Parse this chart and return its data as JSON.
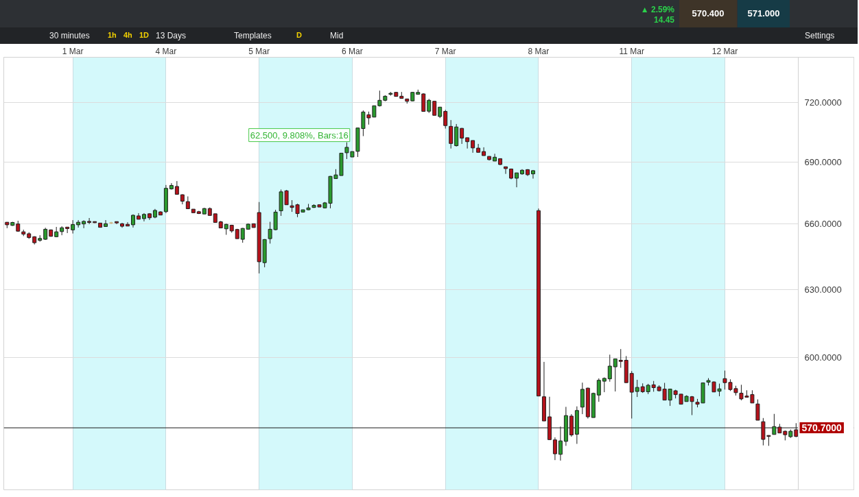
{
  "chart_data": {
    "type": "candlestick",
    "categories": [
      null,
      null,
      null,
      null,
      null,
      null,
      null,
      null,
      null,
      null,
      null,
      null,
      "1 Mar",
      null,
      null,
      null,
      null,
      null,
      null,
      null,
      null,
      null,
      null,
      null,
      null,
      null,
      null,
      null,
      null,
      "4 Mar",
      null,
      null,
      null,
      null,
      null,
      null,
      null,
      null,
      null,
      null,
      null,
      null,
      null,
      null,
      null,
      null,
      "5 Mar",
      null,
      null,
      null,
      null,
      null,
      null,
      null,
      null,
      null,
      null,
      null,
      null,
      null,
      null,
      null,
      null,
      "6 Mar",
      null,
      null,
      null,
      null,
      null,
      null,
      null,
      null,
      null,
      null,
      null,
      null,
      null,
      null,
      null,
      null,
      "7 Mar",
      null,
      null,
      null,
      null,
      null,
      null,
      null,
      null,
      null,
      null,
      null,
      null,
      null,
      null,
      null,
      null,
      "8 Mar",
      null,
      null,
      null,
      null,
      null,
      null,
      null,
      null,
      null,
      null,
      null,
      null,
      null,
      null,
      null,
      null,
      "11 Mar",
      null,
      null,
      null,
      null,
      null,
      null,
      null,
      null,
      null,
      null,
      null,
      null,
      null,
      null,
      null,
      null,
      "12 Mar",
      null,
      null,
      null,
      null,
      null,
      null,
      null,
      null,
      null,
      null,
      null,
      null,
      null
    ],
    "ohlc": [
      [
        660.9,
        660.9,
        658.1,
        659.7
      ],
      [
        659.4,
        661.1,
        659.2,
        660.8
      ],
      [
        660.1,
        661.6,
        656.4,
        656.7
      ],
      [
        656.4,
        657.4,
        654.4,
        655.3
      ],
      [
        655.5,
        656.2,
        653.1,
        653.7
      ],
      [
        654.1,
        654.3,
        650.5,
        651.3
      ],
      [
        652.4,
        654.8,
        651.8,
        653.3
      ],
      [
        652.9,
        658.3,
        652.6,
        657.6
      ],
      [
        657.3,
        657.5,
        654.1,
        654.3
      ],
      [
        654.1,
        658.7,
        653.9,
        656.4
      ],
      [
        656.5,
        659.0,
        654.8,
        658.3
      ],
      [
        658.6,
        658.6,
        655.8,
        657.9
      ],
      [
        657.3,
        661.9,
        655.6,
        659.8
      ],
      [
        659.7,
        661.9,
        658.4,
        660.9
      ],
      [
        660.1,
        661.8,
        658.1,
        661.3
      ],
      [
        661.3,
        662.9,
        660.0,
        660.8
      ],
      [
        661.2,
        661.3,
        660.5,
        660.7
      ],
      [
        660.5,
        660.6,
        658.4,
        658.5
      ],
      [
        658.9,
        661.9,
        658.7,
        660.2
      ],
      [
        660.6,
        661.1,
        660.0,
        660.6
      ],
      [
        661.2,
        661.2,
        660.0,
        660.6
      ],
      [
        660.2,
        660.6,
        658.3,
        659.0
      ],
      [
        659.9,
        660.9,
        659.1,
        659.1
      ],
      [
        659.7,
        664.6,
        658.4,
        664.2
      ],
      [
        663.9,
        665.2,
        662.3,
        662.3
      ],
      [
        662.6,
        665.2,
        661.3,
        664.6
      ],
      [
        664.9,
        665.2,
        662.0,
        663.0
      ],
      [
        663.3,
        667.2,
        662.8,
        666.5
      ],
      [
        665.8,
        666.1,
        664.3,
        664.3
      ],
      [
        665.9,
        678.7,
        665.2,
        677.1
      ],
      [
        676.8,
        679.6,
        676.5,
        678.5
      ],
      [
        678.0,
        680.6,
        674.2,
        674.2
      ],
      [
        674.0,
        674.2,
        669.4,
        670.9
      ],
      [
        670.7,
        673.2,
        667.3,
        667.3
      ],
      [
        667.1,
        667.1,
        665.4,
        665.4
      ],
      [
        665.9,
        666.3,
        664.8,
        665.0
      ],
      [
        664.8,
        667.7,
        664.8,
        667.4
      ],
      [
        667.4,
        667.9,
        664.1,
        664.1
      ],
      [
        664.9,
        664.9,
        660.8,
        660.8
      ],
      [
        661.1,
        661.5,
        658.2,
        658.2
      ],
      [
        657.8,
        660.2,
        655.0,
        659.9
      ],
      [
        659.5,
        659.7,
        656.0,
        656.8
      ],
      [
        657.5,
        657.8,
        653.2,
        653.2
      ],
      [
        652.9,
        658.2,
        651.3,
        658.0
      ],
      [
        657.6,
        660.3,
        657.6,
        660.0
      ],
      [
        660.2,
        660.3,
        658.4,
        658.4
      ],
      [
        665.5,
        670.5,
        637.2,
        642.5
      ],
      [
        642.1,
        653.0,
        640.0,
        652.8
      ],
      [
        653.2,
        661.1,
        650.9,
        657.6
      ],
      [
        657.4,
        666.8,
        657.1,
        665.7
      ],
      [
        666.3,
        676.5,
        663.9,
        675.4
      ],
      [
        675.9,
        676.3,
        669.2,
        669.2
      ],
      [
        668.7,
        671.4,
        665.8,
        667.9
      ],
      [
        669.2,
        669.7,
        663.3,
        665.0
      ],
      [
        665.7,
        666.8,
        665.7,
        666.8
      ],
      [
        666.8,
        669.6,
        666.6,
        667.7
      ],
      [
        667.9,
        669.4,
        667.7,
        668.9
      ],
      [
        669.2,
        669.2,
        668.1,
        668.1
      ],
      [
        667.7,
        670.5,
        667.5,
        670.1
      ],
      [
        669.9,
        683.1,
        667.5,
        682.9
      ],
      [
        681.8,
        686.4,
        681.8,
        683.6
      ],
      [
        683.3,
        694.3,
        683.3,
        694.3
      ],
      [
        694.5,
        699.7,
        691.4,
        697.2
      ],
      [
        692.4,
        695.1,
        692.4,
        695.1
      ],
      [
        695.2,
        706.9,
        692.4,
        706.9
      ],
      [
        706.6,
        715.8,
        702.8,
        715.0
      ],
      [
        713.6,
        715.2,
        708.6,
        712.0
      ],
      [
        712.4,
        718.2,
        712.4,
        718.2
      ],
      [
        718.2,
        726.0,
        717.8,
        721.0
      ],
      [
        721.0,
        723.6,
        720.5,
        723.1
      ],
      [
        724.1,
        725.3,
        723.4,
        724.6
      ],
      [
        725.1,
        725.3,
        723.0,
        723.0
      ],
      [
        723.1,
        725.3,
        722.0,
        722.0
      ],
      [
        721.7,
        721.7,
        719.3,
        720.5
      ],
      [
        720.7,
        725.3,
        720.5,
        725.1
      ],
      [
        724.1,
        726.5,
        724.1,
        725.1
      ],
      [
        724.3,
        724.6,
        715.3,
        715.3
      ],
      [
        715.4,
        721.7,
        714.5,
        721.0
      ],
      [
        720.5,
        720.5,
        713.3,
        713.3
      ],
      [
        712.7,
        717.5,
        711.9,
        717.5
      ],
      [
        715.3,
        716.1,
        706.6,
        708.1
      ],
      [
        707.7,
        710.9,
        696.6,
        699.1
      ],
      [
        698.0,
        708.9,
        697.6,
        707.4
      ],
      [
        706.7,
        706.9,
        698.9,
        701.8
      ],
      [
        702.0,
        702.0,
        696.6,
        700.0
      ],
      [
        700.6,
        700.6,
        694.5,
        696.9
      ],
      [
        696.8,
        698.9,
        694.7,
        694.7
      ],
      [
        695.1,
        697.2,
        693.1,
        693.1
      ],
      [
        692.7,
        692.8,
        690.7,
        691.1
      ],
      [
        690.4,
        694.0,
        690.4,
        692.3
      ],
      [
        691.6,
        691.7,
        688.4,
        688.7
      ],
      [
        687.6,
        687.6,
        684.1,
        686.7
      ],
      [
        686.5,
        686.7,
        681.5,
        682.0
      ],
      [
        682.0,
        684.6,
        677.6,
        684.6
      ],
      [
        684.1,
        686.4,
        683.7,
        685.9
      ],
      [
        686.2,
        686.4,
        683.1,
        683.7
      ],
      [
        684.1,
        685.9,
        681.8,
        685.7
      ],
      [
        666.4,
        667.4,
        583.8,
        583.8
      ],
      [
        583.5,
        598.2,
        573.5,
        573.5
      ],
      [
        575.2,
        583.5,
        565.9,
        565.9
      ],
      [
        565.8,
        566.8,
        557.7,
        560.2
      ],
      [
        560.0,
        571.2,
        557.5,
        565.4
      ],
      [
        565.2,
        579.3,
        563.4,
        575.7
      ],
      [
        575.5,
        576.3,
        567.1,
        567.8
      ],
      [
        568.1,
        579.5,
        564.2,
        577.8
      ],
      [
        579.2,
        589.4,
        576.3,
        586.6
      ],
      [
        587.1,
        587.3,
        574.5,
        575.2
      ],
      [
        574.9,
        585.2,
        574.9,
        584.9
      ],
      [
        584.2,
        591.2,
        581.4,
        590.4
      ],
      [
        590.0,
        591.6,
        585.4,
        591.2
      ],
      [
        591.0,
        601.3,
        589.8,
        596.4
      ],
      [
        596.1,
        599.6,
        585.7,
        599.5
      ],
      [
        598.9,
        603.7,
        595.7,
        598.4
      ],
      [
        598.9,
        600.7,
        589.4,
        589.4
      ],
      [
        593.3,
        594.3,
        574.5,
        585.4
      ],
      [
        585.7,
        590.6,
        583.4,
        587.4
      ],
      [
        587.7,
        589.1,
        585.1,
        585.6
      ],
      [
        585.6,
        588.9,
        584.6,
        588.3
      ],
      [
        588.5,
        590.1,
        585.6,
        587.3
      ],
      [
        587.6,
        588.3,
        585.7,
        586.0
      ],
      [
        586.7,
        589.3,
        582.1,
        582.1
      ],
      [
        582.1,
        586.8,
        579.7,
        586.7
      ],
      [
        586.0,
        586.4,
        582.8,
        584.4
      ],
      [
        584.6,
        584.6,
        580.4,
        580.4
      ],
      [
        581.5,
        584.1,
        581.5,
        583.7
      ],
      [
        583.5,
        583.8,
        575.9,
        581.5
      ],
      [
        581.2,
        582.6,
        579.1,
        580.4
      ],
      [
        580.9,
        589.4,
        580.9,
        589.3
      ],
      [
        589.6,
        591.3,
        588.2,
        590.3
      ],
      [
        589.7,
        589.9,
        585.5,
        585.5
      ],
      [
        585.8,
        589.0,
        583.7,
        586.8
      ],
      [
        591.1,
        594.5,
        586.5,
        589.4
      ],
      [
        589.5,
        590.8,
        585.9,
        586.5
      ],
      [
        586.9,
        588.1,
        584.0,
        585.2
      ],
      [
        585.0,
        588.5,
        582.0,
        582.6
      ],
      [
        583.8,
        586.2,
        583.3,
        583.3
      ],
      [
        584.4,
        586.2,
        580.9,
        580.9
      ],
      [
        580.5,
        582.4,
        573.8,
        573.8
      ],
      [
        573.2,
        574.7,
        563.6,
        566.0
      ],
      [
        567.6,
        567.7,
        563.4,
        567.2
      ],
      [
        568.0,
        576.4,
        568.0,
        571.2
      ],
      [
        571.0,
        572.3,
        568.6,
        568.6
      ],
      [
        569.3,
        569.6,
        565.6,
        567.9
      ],
      [
        567.1,
        570.0,
        566.6,
        569.3
      ],
      [
        569.9,
        572.6,
        566.9,
        567.2
      ]
    ],
    "colors": [
      "#b5121b",
      "#2a9a2e",
      "#b5121b",
      "#b5121b",
      "#b5121b",
      "#b5121b",
      "#2a9a2e",
      "#2a9a2e",
      "#b5121b",
      "#2a9a2e",
      "#2a9a2e",
      "#b5121b",
      "#2a9a2e",
      "#2a9a2e",
      "#2a9a2e",
      "#b5121b",
      "#b5121b",
      "#b5121b",
      "#2a9a2e",
      "#cdb27a",
      "#b5121b",
      "#b5121b",
      "#b5121b",
      "#2a9a2e",
      "#b5121b",
      "#2a9a2e",
      "#b5121b",
      "#2a9a2e",
      "#b5121b",
      "#2a9a2e",
      "#2a9a2e",
      "#b5121b",
      "#b5121b",
      "#b5121b",
      "#b5121b",
      "#b5121b",
      "#2a9a2e",
      "#b5121b",
      "#b5121b",
      "#b5121b",
      "#2a9a2e",
      "#b5121b",
      "#b5121b",
      "#2a9a2e",
      "#2a9a2e",
      "#b5121b",
      "#b5121b",
      "#2a9a2e",
      "#2a9a2e",
      "#2a9a2e",
      "#2a9a2e",
      "#b5121b",
      "#b5121b",
      "#b5121b",
      "#2a9a2e",
      "#2a9a2e",
      "#2a9a2e",
      "#b5121b",
      "#2a9a2e",
      "#2a9a2e",
      "#2a9a2e",
      "#2a9a2e",
      "#2a9a2e",
      "#2a9a2e",
      "#2a9a2e",
      "#2a9a2e",
      "#b5121b",
      "#2a9a2e",
      "#2a9a2e",
      "#2a9a2e",
      "#2a9a2e",
      "#b5121b",
      "#b5121b",
      "#b5121b",
      "#2a9a2e",
      "#2a9a2e",
      "#b5121b",
      "#2a9a2e",
      "#b5121b",
      "#2a9a2e",
      "#b5121b",
      "#b5121b",
      "#2a9a2e",
      "#b5121b",
      "#b5121b",
      "#b5121b",
      "#b5121b",
      "#b5121b",
      "#b5121b",
      "#2a9a2e",
      "#b5121b",
      "#b5121b",
      "#b5121b",
      "#2a9a2e",
      "#2a9a2e",
      "#b5121b",
      "#2a9a2e",
      "#b5121b",
      "#b5121b",
      "#b5121b",
      "#b5121b",
      "#2a9a2e",
      "#2a9a2e",
      "#b5121b",
      "#2a9a2e",
      "#2a9a2e",
      "#b5121b",
      "#2a9a2e",
      "#2a9a2e",
      "#2a9a2e",
      "#2a9a2e",
      "#2a9a2e",
      "#b5121b",
      "#b5121b",
      "#b5121b",
      "#2a9a2e",
      "#b5121b",
      "#2a9a2e",
      "#b5121b",
      "#b5121b",
      "#b5121b",
      "#2a9a2e",
      "#b5121b",
      "#b5121b",
      "#2a9a2e",
      "#b5121b",
      "#b5121b",
      "#2a9a2e",
      "#2a9a2e",
      "#b5121b",
      "#2a9a2e",
      "#b5121b",
      "#b5121b",
      "#b5121b",
      "#b5121b",
      "#b5121b",
      "#b5121b",
      "#b5121b",
      "#b5121b",
      "#b5121b",
      "#2a9a2e",
      "#b5121b",
      "#b5121b",
      "#2a9a2e",
      "#b5121b"
    ],
    "log": true,
    "ylim": [
      546,
      743.5
    ],
    "yticks": [
      {
        "value": 600,
        "label": "600.0000"
      },
      {
        "value": 630,
        "label": "630.0000"
      },
      {
        "value": 660,
        "label": "660.0000"
      },
      {
        "value": 690,
        "label": "690.0000"
      },
      {
        "value": 720,
        "label": "720.0000"
      }
    ],
    "grid": true,
    "bands": [
      {
        "axis": "x",
        "from": "1 Mar",
        "to": "4 Mar",
        "color": "#d4f9fb"
      },
      {
        "axis": "x",
        "from": "5 Mar",
        "to": "6 Mar",
        "color": "#d4f9fb"
      },
      {
        "axis": "x",
        "from": "7 Mar",
        "to": "8 Mar",
        "color": "#d4f9fb"
      },
      {
        "axis": "x",
        "from": "11 Mar",
        "to": "12 Mar",
        "color": "#d4f9fb"
      }
    ],
    "ref_lines": [
      {
        "axis": "y",
        "value": 570.7,
        "label": "570.7000",
        "color": "#1a1a1a"
      }
    ],
    "annotations": [
      "▲ 2.59%",
      "14.45",
      "570.400",
      "571.000",
      "30 minutes",
      "1h",
      "4h",
      "1D",
      "13 Days",
      "Templates",
      "D",
      "Mid",
      "Settings",
      {
        "text": "62.500, 9.808%, Bars:16",
        "x": "5 Mar",
        "y": 699.7
      }
    ]
  }
}
